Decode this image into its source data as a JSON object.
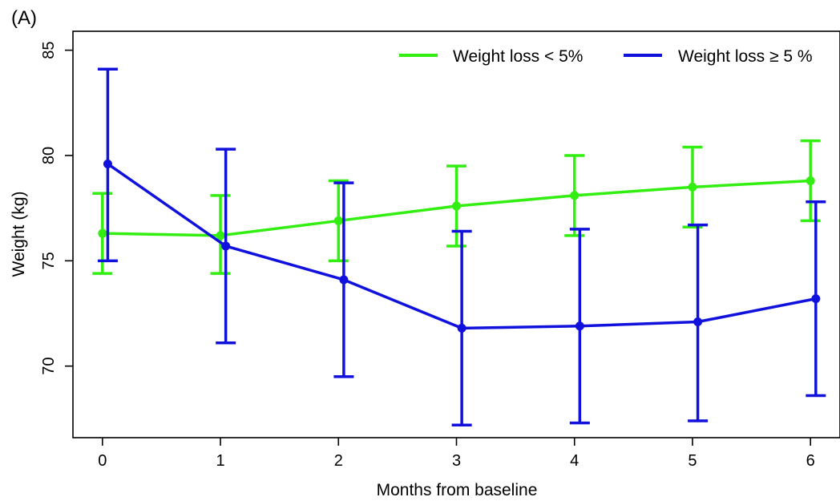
{
  "panel_label": "(A)",
  "chart_data": {
    "type": "line",
    "xlabel": "Months from baseline",
    "ylabel": "Weight (kg)",
    "x": [
      0,
      1,
      2,
      3,
      4,
      5,
      6
    ],
    "xticks": [
      "0",
      "1",
      "2",
      "3",
      "4",
      "5",
      "6"
    ],
    "yticks": [
      70,
      75,
      80,
      85
    ],
    "xlim": [
      -0.25,
      6.25
    ],
    "ylim": [
      66.6,
      85.9
    ],
    "grid": false,
    "legend_position": "top-right",
    "error_bars": true,
    "series": [
      {
        "name": "Weight loss < 5%",
        "color": "#33ee11",
        "values": [
          76.3,
          76.2,
          76.9,
          77.6,
          78.1,
          78.5,
          78.8
        ],
        "lower": [
          74.4,
          74.4,
          75.0,
          75.7,
          76.2,
          76.6,
          76.9
        ],
        "upper": [
          78.2,
          78.1,
          78.8,
          79.5,
          80.0,
          80.4,
          80.7
        ]
      },
      {
        "name": "Weight loss ≥ 5 %",
        "color": "#1111dd",
        "values": [
          79.6,
          75.7,
          74.1,
          71.8,
          71.9,
          72.1,
          73.2
        ],
        "lower": [
          75.0,
          71.1,
          69.5,
          67.2,
          67.3,
          67.4,
          68.6
        ],
        "upper": [
          84.1,
          80.3,
          78.7,
          76.4,
          76.5,
          76.7,
          77.8
        ]
      }
    ]
  }
}
